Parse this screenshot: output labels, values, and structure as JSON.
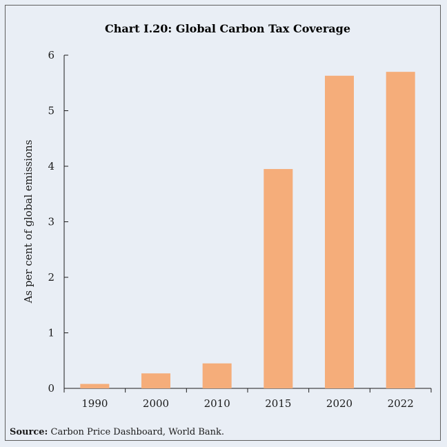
{
  "chart_data": {
    "type": "bar",
    "title": "Chart I.20: Global Carbon Tax Coverage",
    "ylabel": "As per cent of global emissions",
    "xlabel": "",
    "categories": [
      "1990",
      "2000",
      "2010",
      "2015",
      "2020",
      "2022"
    ],
    "values": [
      0.08,
      0.27,
      0.45,
      3.95,
      5.63,
      5.7
    ],
    "ylim": [
      0,
      6
    ],
    "yticks": [
      0,
      1,
      2,
      3,
      4,
      5,
      6
    ],
    "bar_color": "#f5ad7a",
    "grid": false,
    "legend": "none"
  },
  "source": {
    "label": "Source:",
    "text": " Carbon Price Dashboard, World Bank."
  }
}
